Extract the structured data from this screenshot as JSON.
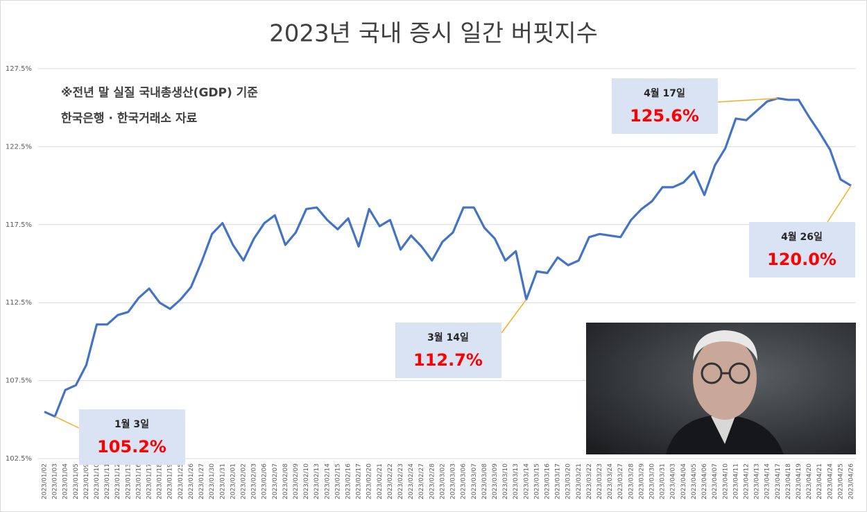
{
  "chart_data": {
    "type": "line",
    "title": "2023년 국내 증시 일간 버핏지수",
    "notes": [
      "※전년 말 실질 국내총생산(GDP) 기준",
      "한국은행 · 한국거래소 자료"
    ],
    "categories": [
      "2023/01/02",
      "2023/01/03",
      "2023/01/04",
      "2023/01/05",
      "2023/01/09",
      "2023/01/10",
      "2023/01/11",
      "2023/01/12",
      "2023/01/13",
      "2023/01/16",
      "2023/01/17",
      "2023/01/18",
      "2023/01/19",
      "2023/01/25",
      "2023/01/26",
      "2023/01/27",
      "2023/01/30",
      "2023/01/31",
      "2023/02/01",
      "2023/02/02",
      "2023/02/03",
      "2023/02/06",
      "2023/02/07",
      "2023/02/08",
      "2023/02/09",
      "2023/02/10",
      "2023/02/13",
      "2023/02/14",
      "2023/02/15",
      "2023/02/16",
      "2023/02/17",
      "2023/02/20",
      "2023/02/21",
      "2023/02/22",
      "2023/02/23",
      "2023/02/24",
      "2023/02/27",
      "2023/02/28",
      "2023/03/02",
      "2023/03/03",
      "2023/03/06",
      "2023/03/07",
      "2023/03/08",
      "2023/03/09",
      "2023/03/10",
      "2023/03/13",
      "2023/03/14",
      "2023/03/15",
      "2023/03/16",
      "2023/03/17",
      "2023/03/20",
      "2023/03/21",
      "2023/03/22",
      "2023/03/23",
      "2023/03/24",
      "2023/03/27",
      "2023/03/28",
      "2023/03/29",
      "2023/03/30",
      "2023/03/31",
      "2023/04/03",
      "2023/04/04",
      "2023/04/05",
      "2023/04/06",
      "2023/04/07",
      "2023/04/10",
      "2023/04/11",
      "2023/04/12",
      "2023/04/13",
      "2023/04/14",
      "2023/04/17",
      "2023/04/18",
      "2023/04/19",
      "2023/04/20",
      "2023/04/21",
      "2023/04/24",
      "2023/04/25",
      "2023/04/26"
    ],
    "values": [
      105.5,
      105.2,
      106.9,
      107.2,
      108.5,
      111.1,
      111.1,
      111.7,
      111.9,
      112.8,
      113.4,
      112.5,
      112.1,
      112.7,
      113.5,
      115.1,
      116.9,
      117.6,
      116.2,
      115.2,
      116.6,
      117.6,
      118.1,
      116.2,
      117.0,
      118.5,
      118.6,
      117.8,
      117.2,
      117.9,
      116.1,
      118.5,
      117.4,
      117.8,
      115.9,
      116.8,
      116.1,
      115.2,
      116.4,
      117.0,
      118.6,
      118.6,
      117.3,
      116.6,
      115.2,
      115.8,
      112.7,
      114.5,
      114.4,
      115.4,
      114.9,
      115.2,
      116.7,
      116.9,
      116.8,
      116.7,
      117.8,
      118.5,
      119.0,
      119.9,
      119.9,
      120.2,
      120.9,
      119.4,
      121.3,
      122.4,
      124.3,
      124.2,
      124.8,
      125.4,
      125.6,
      125.5,
      125.5,
      124.4,
      123.4,
      122.3,
      120.4,
      120.0
    ],
    "color": "#4472c4",
    "ylim": [
      102.5,
      127.5
    ],
    "yticks": [
      {
        "value": 102.5,
        "label": "102.5%"
      },
      {
        "value": 107.5,
        "label": "107.5%"
      },
      {
        "value": 112.5,
        "label": "112.5%"
      },
      {
        "value": 117.5,
        "label": "117.5%"
      },
      {
        "value": 122.5,
        "label": "122.5%"
      },
      {
        "value": 127.5,
        "label": "127.5%"
      }
    ],
    "grid": true,
    "annotations": [
      {
        "text": "1월 3일",
        "x": "2023/01/03",
        "value": 105.2,
        "value_label": "105.2%"
      },
      {
        "text": "3월 14일",
        "x": "2023/03/14",
        "value": 112.7,
        "value_label": "112.7%"
      },
      {
        "text": "4월 17일",
        "x": "2023/04/17",
        "value": 125.6,
        "value_label": "125.6%"
      },
      {
        "text": "4월 26일",
        "x": "2023/04/26",
        "value": 120.0,
        "value_label": "120.0%"
      }
    ]
  }
}
